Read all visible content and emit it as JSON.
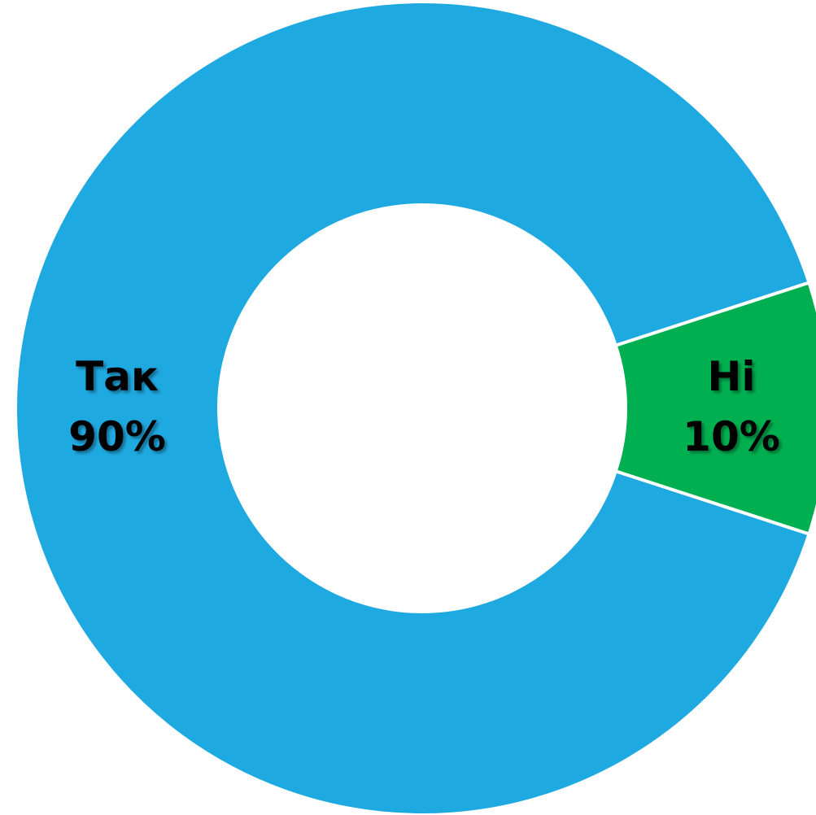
{
  "chart_data": {
    "type": "pie",
    "variant": "donut",
    "title": "",
    "slices": [
      {
        "label": "Так",
        "value": 90,
        "value_label": "90%",
        "color": "#1FA9E1"
      },
      {
        "label": "Ні",
        "value": 10,
        "value_label": "10%",
        "color": "#00AF50"
      }
    ],
    "legend": "none",
    "separator_color": "#ffffff"
  }
}
